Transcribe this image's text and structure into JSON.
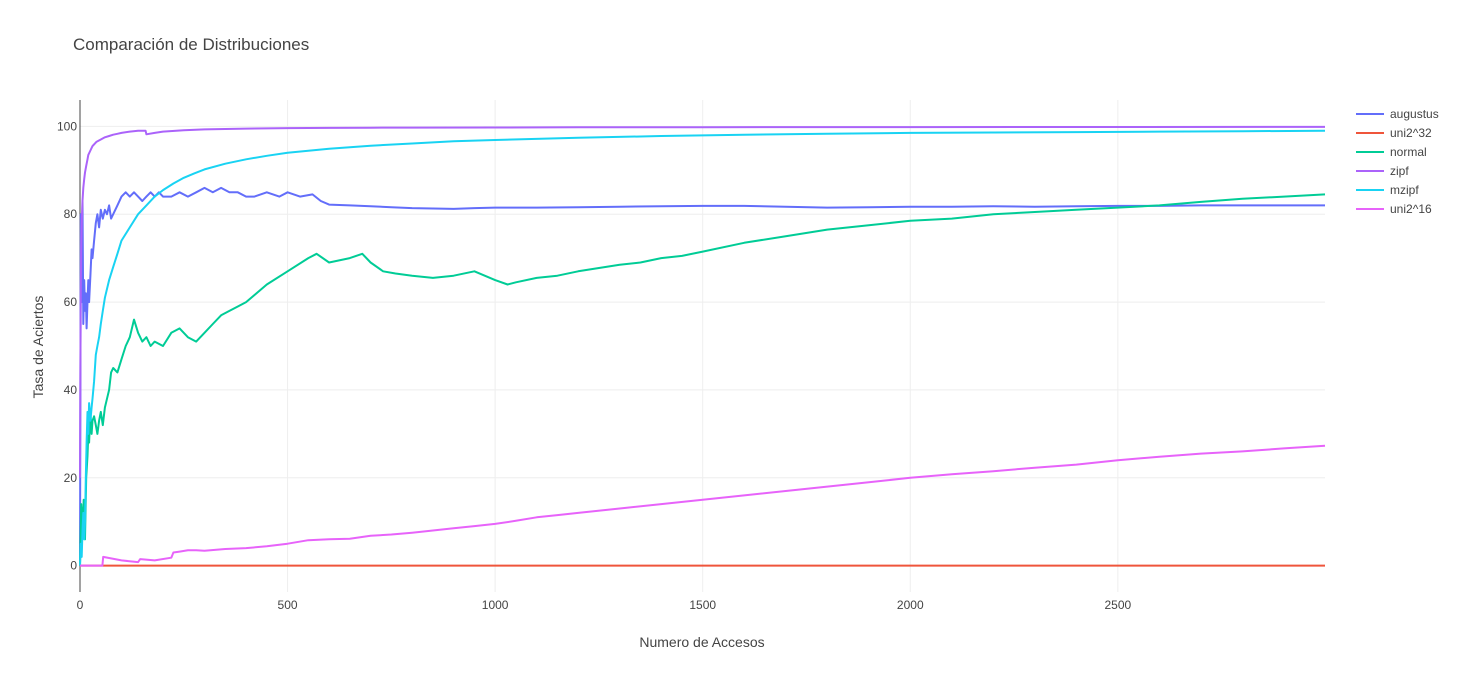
{
  "chart_data": {
    "type": "line",
    "title": "Comparación de Distribuciones",
    "xlabel": "Numero de Accesos",
    "ylabel": "Tasa de Aciertos",
    "xlim": [
      0,
      2999
    ],
    "ylim": [
      -6,
      106
    ],
    "xticks": [
      0,
      500,
      1000,
      1500,
      2000,
      2500
    ],
    "xtick_labels": [
      "0",
      "500",
      "1000",
      "1500",
      "2000",
      "2500"
    ],
    "yticks": [
      0,
      20,
      40,
      60,
      80,
      100
    ],
    "ytick_labels": [
      "0",
      "20",
      "40",
      "60",
      "80",
      "100"
    ],
    "grid": true,
    "legend_position": "top-right",
    "series": [
      {
        "name": "augustus",
        "color": "#636efa",
        "x": [
          0,
          2,
          4,
          6,
          8,
          10,
          12,
          14,
          16,
          18,
          20,
          22,
          25,
          28,
          30,
          34,
          38,
          42,
          46,
          50,
          55,
          60,
          65,
          70,
          75,
          80,
          90,
          100,
          110,
          120,
          130,
          140,
          150,
          160,
          170,
          180,
          190,
          200,
          220,
          240,
          260,
          280,
          300,
          320,
          340,
          360,
          380,
          400,
          420,
          450,
          480,
          500,
          530,
          560,
          580,
          600,
          650,
          700,
          750,
          800,
          850,
          900,
          950,
          1000,
          1100,
          1200,
          1300,
          1400,
          1500,
          1600,
          1700,
          1800,
          1900,
          2000,
          2100,
          2200,
          2300,
          2400,
          2500,
          2600,
          2700,
          2800,
          2900,
          2999
        ],
        "y": [
          0,
          80,
          60,
          83,
          55,
          65,
          58,
          62,
          54,
          60,
          65,
          60,
          66,
          72,
          70,
          74,
          78,
          80,
          77,
          81,
          79,
          81,
          80,
          82,
          79,
          80,
          82,
          84,
          85,
          84,
          85,
          84,
          83,
          84,
          85,
          84,
          85,
          84,
          84,
          85,
          84,
          85,
          86,
          85,
          86,
          85,
          85,
          84,
          84,
          85,
          84,
          85,
          84,
          84.5,
          83,
          82.2,
          82,
          81.8,
          81.6,
          81.4,
          81.3,
          81.2,
          81.4,
          81.5,
          81.5,
          81.6,
          81.7,
          81.8,
          81.9,
          81.9,
          81.7,
          81.5,
          81.6,
          81.7,
          81.7,
          81.8,
          81.7,
          81.8,
          81.9,
          81.9,
          82,
          82,
          82,
          82
        ]
      },
      {
        "name": "uni2^32",
        "color": "#ef553b",
        "x": [
          0,
          2999
        ],
        "y": [
          0,
          0
        ]
      },
      {
        "name": "normal",
        "color": "#00cc96",
        "x": [
          0,
          3,
          6,
          9,
          12,
          15,
          18,
          20,
          22,
          25,
          28,
          30,
          34,
          38,
          42,
          46,
          50,
          55,
          60,
          65,
          70,
          75,
          80,
          90,
          100,
          110,
          120,
          130,
          140,
          150,
          160,
          170,
          180,
          200,
          220,
          240,
          260,
          280,
          300,
          320,
          340,
          360,
          380,
          400,
          450,
          500,
          550,
          570,
          600,
          650,
          680,
          700,
          730,
          760,
          800,
          850,
          900,
          950,
          1000,
          1030,
          1050,
          1100,
          1150,
          1200,
          1300,
          1350,
          1400,
          1450,
          1500,
          1600,
          1700,
          1800,
          1900,
          2000,
          2100,
          2200,
          2300,
          2400,
          2500,
          2600,
          2700,
          2800,
          2900,
          2999
        ],
        "y": [
          0,
          14,
          8,
          15,
          6,
          20,
          25,
          30,
          28,
          35,
          30,
          33,
          34,
          32,
          30,
          33,
          35,
          32,
          36,
          38,
          40,
          44,
          45,
          44,
          47,
          50,
          52,
          56,
          53,
          51,
          52,
          50,
          51,
          50,
          53,
          54,
          52,
          51,
          53,
          55,
          57,
          58,
          59,
          60,
          64,
          67,
          70,
          71,
          69,
          70,
          71,
          69,
          67,
          66.5,
          66,
          65.5,
          66,
          67,
          65,
          64,
          64.5,
          65.5,
          66,
          67,
          68.5,
          69,
          70,
          70.5,
          71.5,
          73.5,
          75,
          76.5,
          77.5,
          78.5,
          79,
          80,
          80.5,
          81,
          81.5,
          82,
          82.8,
          83.5,
          84,
          84.5
        ]
      },
      {
        "name": "zipf",
        "color": "#ab63fa",
        "x": [
          0,
          1,
          2,
          3,
          4,
          6,
          8,
          10,
          12,
          15,
          18,
          20,
          25,
          30,
          35,
          40,
          50,
          60,
          70,
          80,
          90,
          100,
          120,
          140,
          158,
          160,
          180,
          200,
          250,
          300,
          400,
          500,
          600,
          700,
          800,
          1000,
          1200,
          1500,
          2000,
          2500,
          2999
        ],
        "y": [
          20,
          45,
          62,
          72,
          78,
          83,
          86,
          88,
          89.5,
          91,
          92.5,
          93.5,
          94.5,
          95.5,
          96,
          96.5,
          97,
          97.5,
          97.8,
          98.1,
          98.3,
          98.5,
          98.8,
          99,
          99,
          98.2,
          98.5,
          98.8,
          99.1,
          99.3,
          99.5,
          99.6,
          99.65,
          99.7,
          99.72,
          99.75,
          99.78,
          99.8,
          99.83,
          99.86,
          99.88
        ]
      },
      {
        "name": "mzipf",
        "color": "#19d3f3",
        "x": [
          0,
          2,
          4,
          6,
          8,
          10,
          12,
          14,
          16,
          18,
          20,
          22,
          25,
          28,
          30,
          34,
          38,
          42,
          46,
          50,
          55,
          60,
          70,
          80,
          90,
          100,
          120,
          140,
          160,
          180,
          200,
          225,
          250,
          275,
          300,
          350,
          400,
          450,
          500,
          600,
          700,
          800,
          900,
          1000,
          1200,
          1400,
          1600,
          1800,
          2000,
          2200,
          2400,
          2600,
          2800,
          2999
        ],
        "y": [
          0,
          5,
          2,
          8,
          12,
          6,
          10,
          20,
          28,
          35,
          30,
          37,
          33,
          36,
          38,
          42,
          48,
          50,
          52,
          55,
          58,
          61,
          65,
          68,
          71,
          74,
          77,
          80,
          82,
          84,
          85.5,
          87,
          88.3,
          89.3,
          90.2,
          91.5,
          92.5,
          93.3,
          94,
          94.9,
          95.6,
          96.1,
          96.6,
          96.9,
          97.4,
          97.8,
          98.1,
          98.3,
          98.5,
          98.6,
          98.7,
          98.8,
          98.9,
          99
        ]
      },
      {
        "name": "uni2^16",
        "color": "#e763fa",
        "x": [
          0,
          50,
          54,
          56,
          100,
          140,
          145,
          180,
          220,
          225,
          240,
          260,
          280,
          300,
          350,
          400,
          450,
          500,
          550,
          600,
          650,
          700,
          750,
          800,
          850,
          900,
          950,
          1000,
          1050,
          1100,
          1150,
          1200,
          1300,
          1400,
          1500,
          1600,
          1700,
          1800,
          1900,
          2000,
          2100,
          2200,
          2300,
          2400,
          2500,
          2600,
          2700,
          2800,
          2900,
          2999
        ],
        "y": [
          0,
          0,
          0,
          2,
          1.2,
          0.8,
          1.5,
          1.2,
          1.8,
          3,
          3.2,
          3.5,
          3.5,
          3.4,
          3.8,
          4,
          4.4,
          5,
          5.8,
          6,
          6.1,
          6.8,
          7.1,
          7.5,
          8,
          8.5,
          9,
          9.5,
          10.2,
          11,
          11.5,
          12,
          13,
          14,
          15,
          16,
          17,
          18,
          19,
          20,
          20.8,
          21.5,
          22.3,
          23,
          24,
          24.8,
          25.5,
          26,
          26.7,
          27.3
        ]
      }
    ]
  }
}
